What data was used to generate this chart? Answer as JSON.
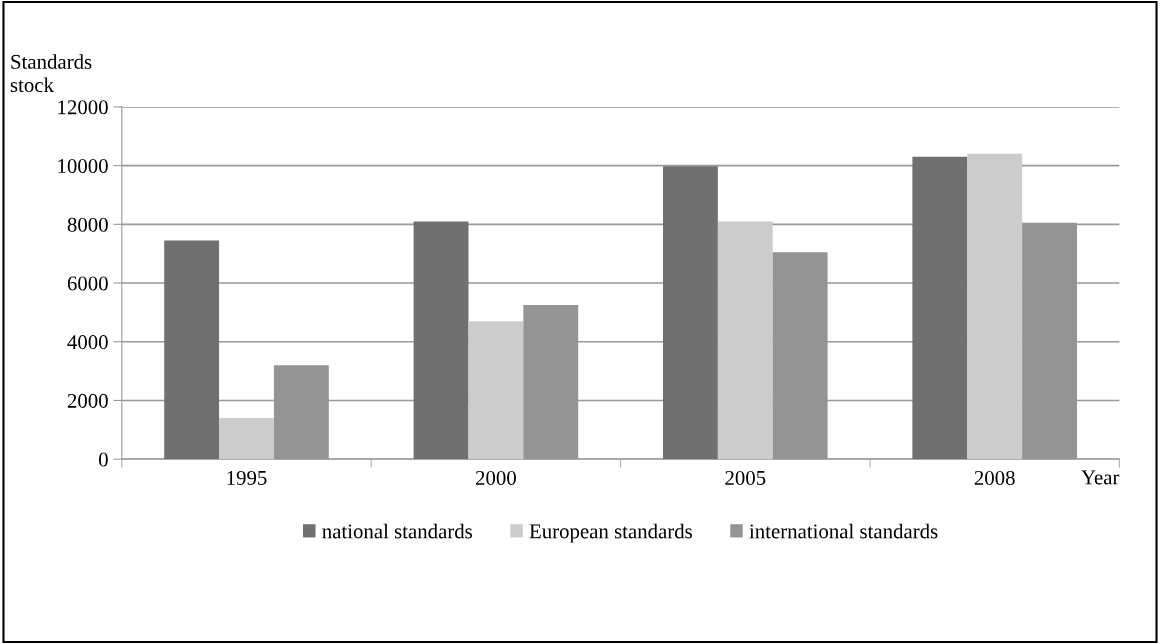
{
  "chart_data": {
    "type": "bar",
    "ylabel": "Standards\nstock",
    "xlabel": "Year",
    "categories": [
      "1995",
      "2000",
      "2005",
      "2008"
    ],
    "series": [
      {
        "name": "national standards",
        "color": "#707070",
        "values": [
          7450,
          8100,
          9980,
          10300
        ]
      },
      {
        "name": "European standards",
        "color": "#cccccc",
        "values": [
          1400,
          4700,
          8100,
          10400
        ]
      },
      {
        "name": "international standards",
        "color": "#949494",
        "values": [
          3200,
          5250,
          7050,
          8050
        ]
      }
    ],
    "ylim": [
      0,
      12000
    ],
    "yticks": [
      0,
      2000,
      4000,
      6000,
      8000,
      10000,
      12000
    ],
    "grid": "y",
    "legend": "bottom"
  }
}
